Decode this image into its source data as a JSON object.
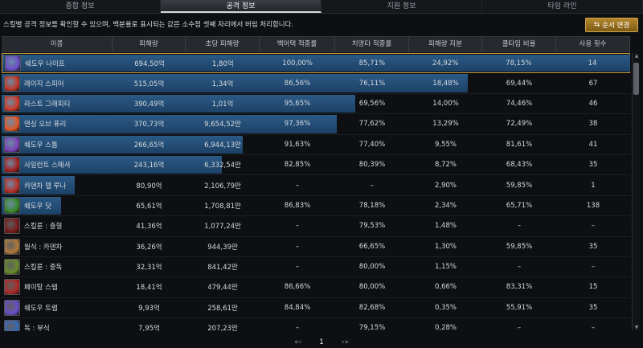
{
  "tabs": [
    {
      "label": "종합 정보",
      "active": false
    },
    {
      "label": "공격 정보",
      "active": true
    },
    {
      "label": "지원 정보",
      "active": false
    },
    {
      "label": "타임 라인",
      "active": false
    }
  ],
  "notice": "스킬별 공격 정보를 확인할 수 있으며, 백분율로 표시되는 값은 소수점 셋째 자리에서 버림 처리합니다.",
  "sort_button": {
    "label": "순서 변경",
    "icon": "swap-icon"
  },
  "table": {
    "headers": [
      "이름",
      "피해량",
      "초당 피해량",
      "백어택 적중률",
      "치명타 적중률",
      "피해량 지분",
      "쿨타임 비율",
      "사용 횟수"
    ],
    "rows": [
      {
        "name": "쉐도우 나이프",
        "damage": "694,50억",
        "dps": "1,80억",
        "back": "100,00%",
        "crit": "85,71%",
        "share": "24,92%",
        "cooldown": "78,15%",
        "uses": "14",
        "bar": 1.0,
        "selected": true,
        "icon_color": "#6a4fc8"
      },
      {
        "name": "레이지 스피어",
        "damage": "515,05억",
        "dps": "1,34억",
        "back": "86,56%",
        "crit": "76,11%",
        "share": "18,48%",
        "cooldown": "69,44%",
        "uses": "67",
        "bar": 0.7416,
        "selected": false,
        "icon_color": "#c0392b"
      },
      {
        "name": "라스트 그래피티",
        "damage": "390,49억",
        "dps": "1,01억",
        "back": "95,65%",
        "crit": "69,56%",
        "share": "14,00%",
        "cooldown": "74,46%",
        "uses": "46",
        "bar": 0.5623,
        "selected": false,
        "icon_color": "#d03a2a"
      },
      {
        "name": "댄싱 오브 퓨리",
        "damage": "370,73억",
        "dps": "9,654,52만",
        "back": "97,36%",
        "crit": "77,62%",
        "share": "13,29%",
        "cooldown": "72,49%",
        "uses": "38",
        "bar": 0.5338,
        "selected": false,
        "icon_color": "#e0582a"
      },
      {
        "name": "쉐도우 스톰",
        "damage": "266,65억",
        "dps": "6,944,13만",
        "back": "91,63%",
        "crit": "77,40%",
        "share": "9,55%",
        "cooldown": "81,61%",
        "uses": "41",
        "bar": 0.384,
        "selected": false,
        "icon_color": "#7a42b8"
      },
      {
        "name": "사일런트 스매셔",
        "damage": "243,16억",
        "dps": "6,332,54만",
        "back": "82,85%",
        "crit": "80,39%",
        "share": "8,72%",
        "cooldown": "68,43%",
        "uses": "35",
        "bar": 0.3501,
        "selected": false,
        "icon_color": "#a52222"
      },
      {
        "name": "카덴차 델 루나",
        "damage": "80,90억",
        "dps": "2,106,79만",
        "back": "–",
        "crit": "–",
        "share": "2,90%",
        "cooldown": "59,85%",
        "uses": "1",
        "bar": 0.1165,
        "selected": false,
        "icon_color": "#b8302c"
      },
      {
        "name": "쉐도우 닷",
        "damage": "65,61억",
        "dps": "1,708,81만",
        "back": "86,83%",
        "crit": "78,18%",
        "share": "2,34%",
        "cooldown": "65,71%",
        "uses": "138",
        "bar": 0.0945,
        "selected": false,
        "icon_color": "#3a8a2a"
      },
      {
        "name": "스킬룬 : 출혈",
        "damage": "41,36억",
        "dps": "1,077,24만",
        "back": "–",
        "crit": "79,53%",
        "share": "1,48%",
        "cooldown": "–",
        "uses": "–",
        "bar": 0.0,
        "selected": false,
        "icon_color": "#7a1a1a"
      },
      {
        "name": "월식 : 카덴차",
        "damage": "36,26억",
        "dps": "944,39만",
        "back": "–",
        "crit": "66,65%",
        "share": "1,30%",
        "cooldown": "59,85%",
        "uses": "35",
        "bar": 0.0,
        "selected": false,
        "icon_color": "#b07a3a"
      },
      {
        "name": "스킬룬 : 중독",
        "damage": "32,31억",
        "dps": "841,42만",
        "back": "–",
        "crit": "80,00%",
        "share": "1,15%",
        "cooldown": "–",
        "uses": "–",
        "bar": 0.0,
        "selected": false,
        "icon_color": "#6a8a2a"
      },
      {
        "name": "페이탈 스텝",
        "damage": "18,41억",
        "dps": "479,44만",
        "back": "86,66%",
        "crit": "80,00%",
        "share": "0,66%",
        "cooldown": "83,31%",
        "uses": "15",
        "bar": 0.0,
        "selected": false,
        "icon_color": "#b02828"
      },
      {
        "name": "쉐도우 트랩",
        "damage": "9,93억",
        "dps": "258,61만",
        "back": "84,84%",
        "crit": "82,68%",
        "share": "0,35%",
        "cooldown": "55,91%",
        "uses": "35",
        "bar": 0.0,
        "selected": false,
        "icon_color": "#6a4fc8"
      },
      {
        "name": "독 : 부식",
        "damage": "7,95억",
        "dps": "207,23만",
        "back": "–",
        "crit": "79,15%",
        "share": "0,28%",
        "cooldown": "–",
        "uses": "–",
        "bar": 0.0,
        "selected": false,
        "icon_color": "#3a6ab8"
      }
    ]
  },
  "pager": {
    "prev": "«‹",
    "page": "1",
    "next": "›»"
  },
  "colors": {
    "accent": "#c79a3e",
    "bar": "#2b5a86",
    "selected_border": "#c79a3e"
  }
}
